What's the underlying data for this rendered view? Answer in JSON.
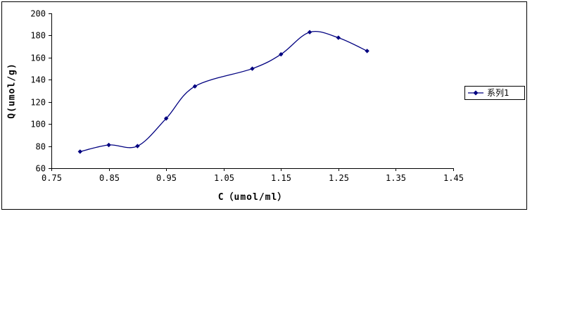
{
  "chart_data": {
    "type": "line",
    "title": "",
    "x": [
      0.8,
      0.85,
      0.9,
      0.95,
      1.0,
      1.1,
      1.15,
      1.2,
      1.25,
      1.3
    ],
    "series": [
      {
        "name": "系列1",
        "values": [
          75,
          81,
          80,
          105,
          134,
          150,
          163,
          183,
          178,
          166
        ]
      }
    ],
    "xlabel": "C（umol/ml）",
    "ylabel": "Q(umol/g)",
    "xlim": [
      0.75,
      1.45
    ],
    "xticks": [
      0.75,
      0.85,
      0.95,
      1.05,
      1.15,
      1.25,
      1.35,
      1.45
    ],
    "ylim": [
      60,
      200
    ],
    "yticks": [
      60,
      80,
      100,
      120,
      140,
      160,
      180,
      200
    ],
    "grid": false,
    "smooth": true,
    "marker": "diamond",
    "legend_position": "right",
    "line_color": "#000080",
    "axis_color": "#000000",
    "border_color": "#000000",
    "background_color": "#ffffff"
  }
}
